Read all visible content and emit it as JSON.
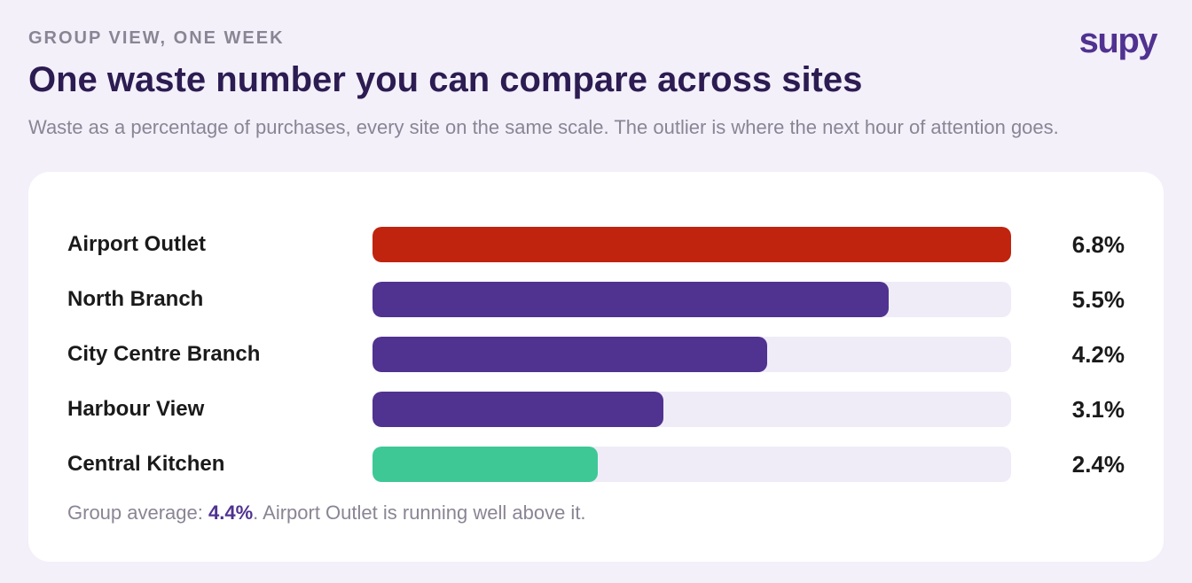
{
  "header": {
    "eyebrow": "GROUP VIEW, ONE WEEK",
    "title": "One waste number you can compare across sites",
    "subtitle": "Waste as a percentage of purchases, every site on the same scale. The outlier is where the next hour of attention goes.",
    "logo": "supy"
  },
  "chart_data": {
    "type": "bar",
    "orientation": "horizontal",
    "categories": [
      "Airport Outlet",
      "North Branch",
      "City Centre Branch",
      "Harbour View",
      "Central Kitchen"
    ],
    "values": [
      6.8,
      5.5,
      4.2,
      3.1,
      2.4
    ],
    "value_labels": [
      "6.8%",
      "5.5%",
      "4.2%",
      "3.1%",
      "2.4%"
    ],
    "bar_colors": [
      "#c0240e",
      "#503290",
      "#503290",
      "#503290",
      "#3ec896"
    ],
    "track_color": "#efecf8",
    "xlim": [
      0,
      6.8
    ]
  },
  "footnote": {
    "prefix": "Group average: ",
    "average": "4.4%",
    "suffix": ". Airport Outlet is running well above it."
  }
}
